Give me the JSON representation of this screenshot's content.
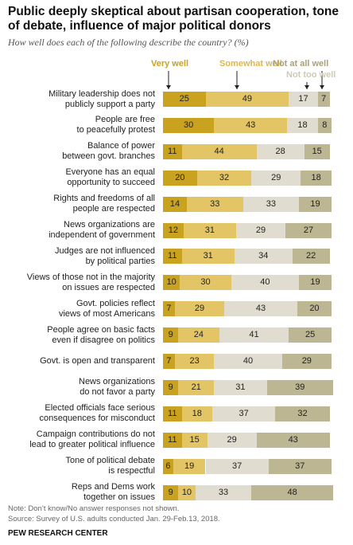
{
  "chart_data": {
    "type": "bar",
    "orientation": "horizontal",
    "stacked": true,
    "title": "Public deeply skeptical about partisan cooperation, tone of debate, influence of major political donors",
    "subtitle": "How well does each of the following describe the country? (%)",
    "categories": [
      "Military leadership does not\npublicly support a party",
      "People are free\nto peacefully protest",
      "Balance of power\nbetween govt. branches",
      "Everyone has an equal\nopportunity to succeed",
      "Rights and freedoms of all\npeople are respected",
      "News organizations are\nindependent of government",
      "Judges are not influenced\nby political parties",
      "Views of those not in the majority\non issues are respected",
      "Govt. policies reflect\nviews of most Americans",
      "People agree on basic facts\neven if disagree on politics",
      "Govt. is open and transparent",
      "News organizations\ndo not favor a party",
      "Elected officials face serious\nconsequences for misconduct",
      "Campaign contributions do not\nlead to greater political influence",
      "Tone of political debate\nis respectful",
      "Reps and Dems work\ntogether on issues"
    ],
    "series": [
      {
        "name": "Very well",
        "color": "#c9a21f",
        "values": [
          25,
          30,
          11,
          20,
          14,
          12,
          11,
          10,
          7,
          9,
          7,
          9,
          11,
          11,
          6,
          9
        ]
      },
      {
        "name": "Somewhat well",
        "color": "#e4c566",
        "values": [
          49,
          43,
          44,
          32,
          33,
          31,
          31,
          30,
          29,
          24,
          23,
          21,
          18,
          15,
          19,
          10
        ]
      },
      {
        "name": "Not too well",
        "color": "#e0ddd0",
        "values": [
          17,
          18,
          28,
          29,
          33,
          29,
          34,
          40,
          43,
          41,
          40,
          31,
          37,
          29,
          37,
          33
        ]
      },
      {
        "name": "Not at all well",
        "color": "#bcb692",
        "values": [
          7,
          8,
          15,
          18,
          19,
          27,
          22,
          19,
          20,
          25,
          29,
          39,
          32,
          43,
          37,
          48
        ]
      }
    ],
    "notes": [
      "Note: Don’t know/No answer responses not shown.",
      "Source: Survey of U.S. adults conducted Jan. 29-Feb.13, 2018."
    ],
    "brand": "PEW RESEARCH CENTER"
  }
}
